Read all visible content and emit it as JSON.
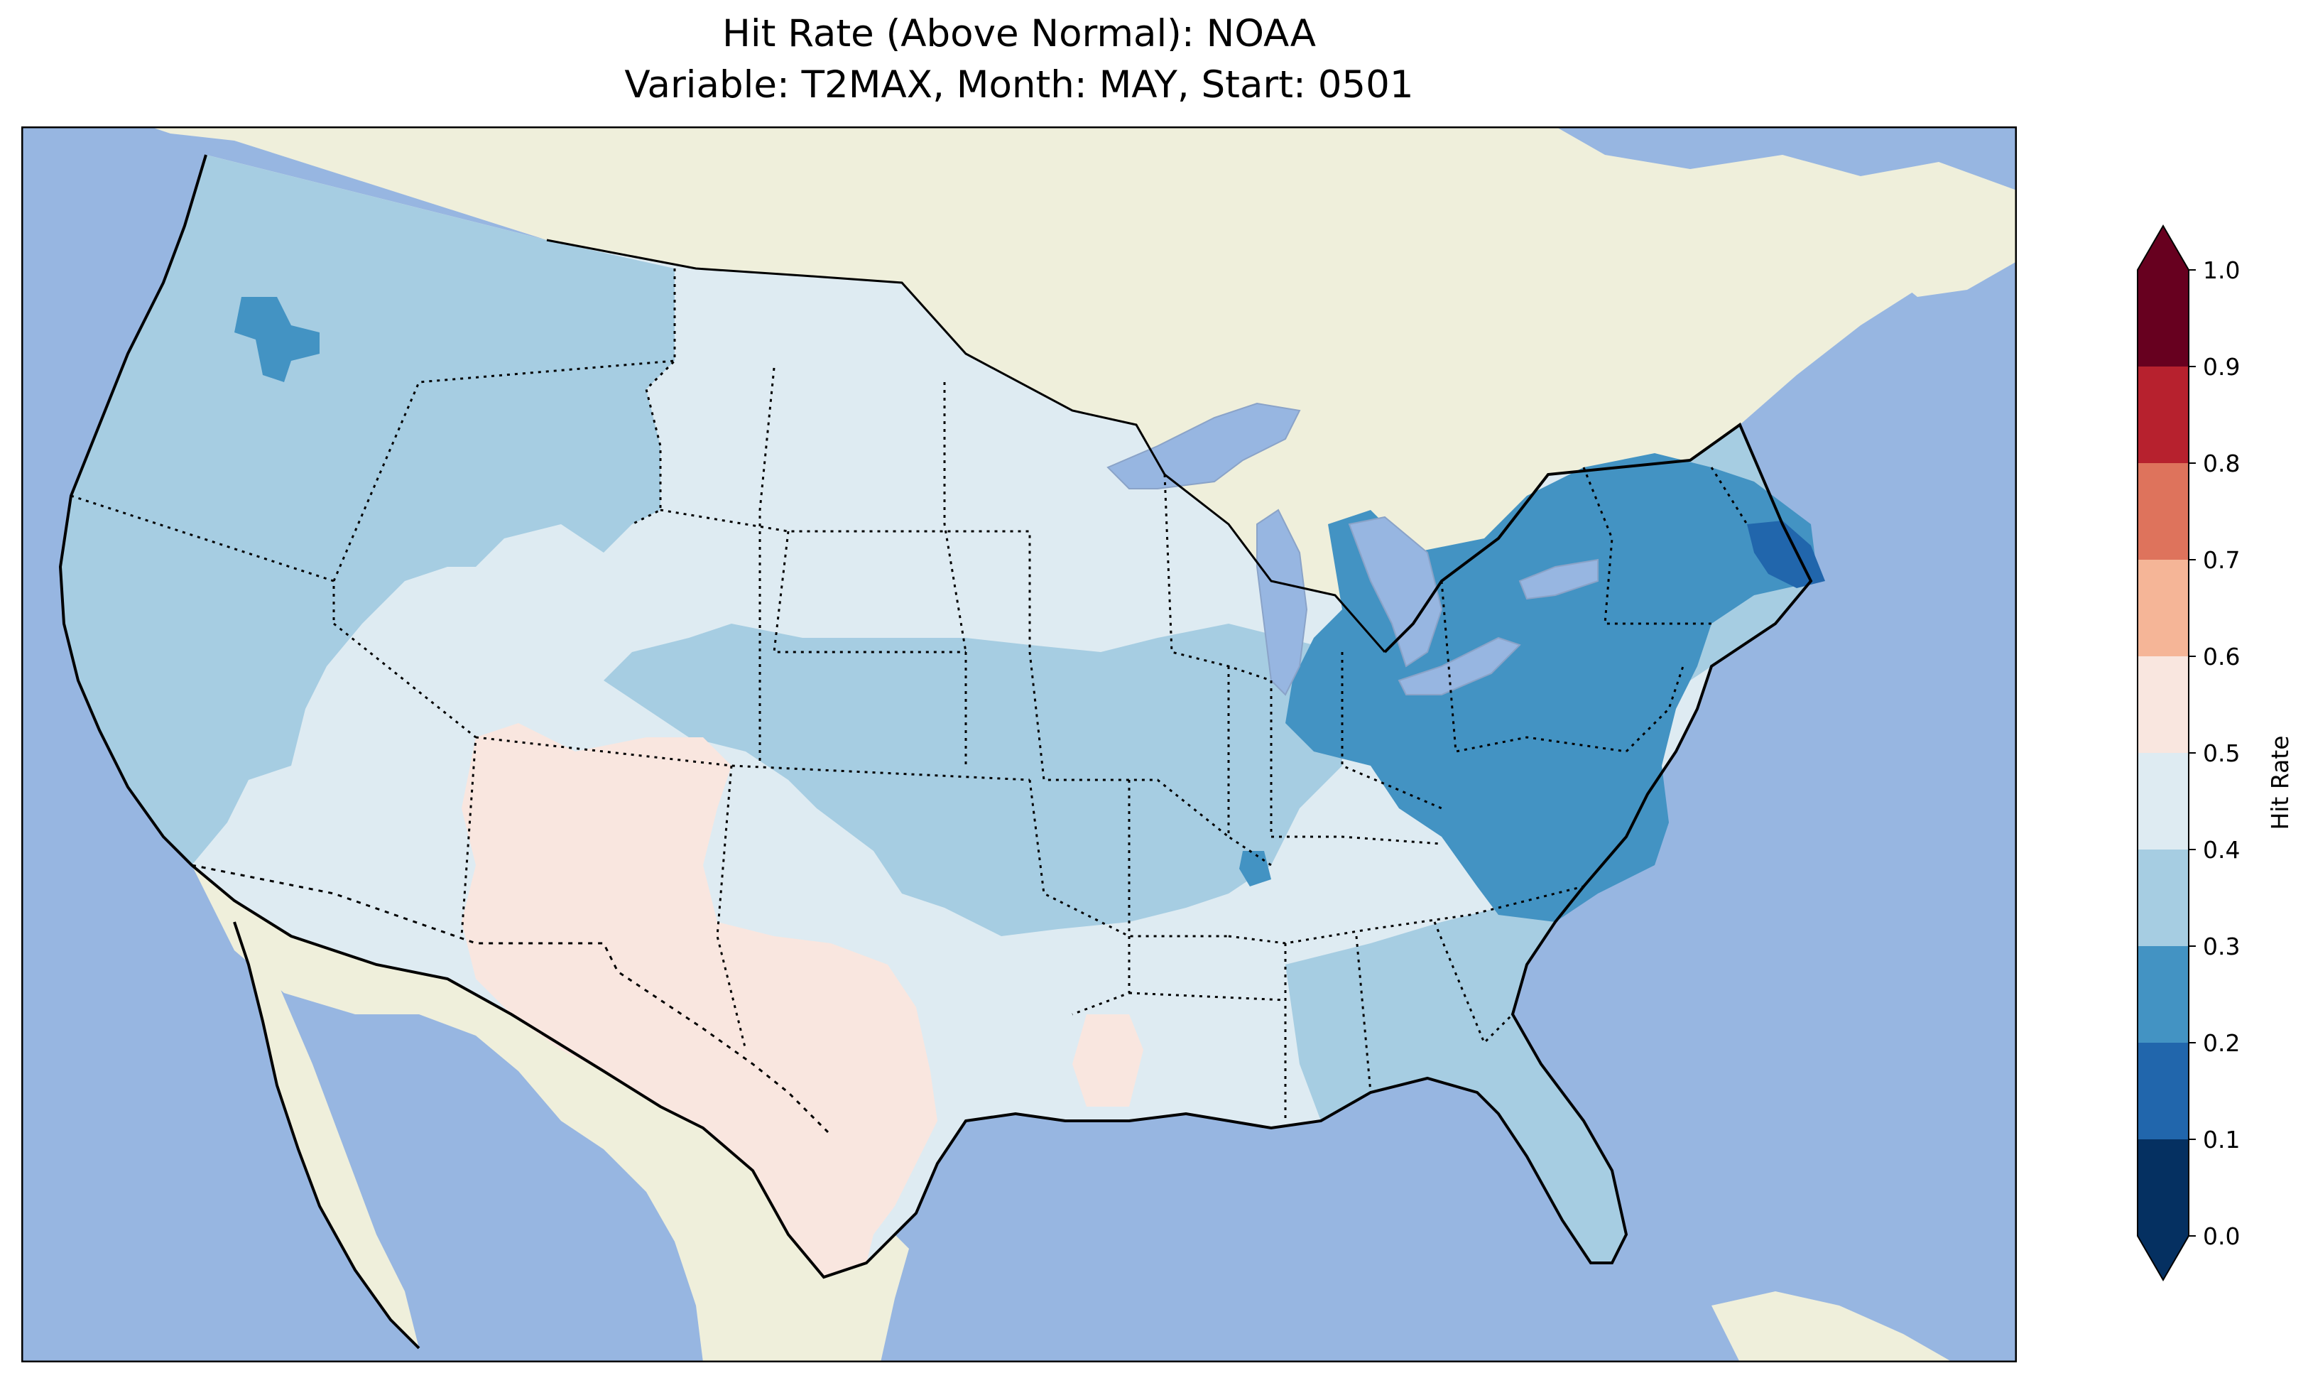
{
  "title": {
    "line1": "Hit Rate (Above Normal): NOAA",
    "line2": "Variable: T2MAX, Month: MAY, Start: 0501"
  },
  "colors": {
    "ocean": "#97b6e1",
    "land": "#efefdb",
    "lake": "#97b6e1"
  },
  "colorbar": {
    "label": "Hit Rate",
    "ticks": [
      "0.0",
      "0.1",
      "0.2",
      "0.3",
      "0.4",
      "0.5",
      "0.6",
      "0.7",
      "0.8",
      "0.9",
      "1.0"
    ],
    "bins": [
      {
        "from": 0.0,
        "to": 0.1,
        "color": "#053061"
      },
      {
        "from": 0.1,
        "to": 0.2,
        "color": "#2166ac"
      },
      {
        "from": 0.2,
        "to": 0.3,
        "color": "#4393c3"
      },
      {
        "from": 0.3,
        "to": 0.4,
        "color": "#a6cde2"
      },
      {
        "from": 0.4,
        "to": 0.5,
        "color": "#deebf2"
      },
      {
        "from": 0.5,
        "to": 0.6,
        "color": "#f9e6df"
      },
      {
        "from": 0.6,
        "to": 0.7,
        "color": "#f5b597"
      },
      {
        "from": 0.7,
        "to": 0.8,
        "color": "#de735c"
      },
      {
        "from": 0.8,
        "to": 0.9,
        "color": "#b7212e"
      },
      {
        "from": 0.9,
        "to": 1.0,
        "color": "#67001f"
      }
    ],
    "extend": "both"
  },
  "map": {
    "projection": "Lambert conformal, contiguous United States",
    "regions": [
      {
        "name": "Pacific Northwest interior",
        "bin": "0.3-0.4"
      },
      {
        "name": "Northern Oregon pocket",
        "bin": "0.2-0.3"
      },
      {
        "name": "Northern Rockies and Plains",
        "bin": "0.3-0.4"
      },
      {
        "name": "Dakotas and Upper Midwest",
        "bin": "0.4-0.5"
      },
      {
        "name": "Great Basin and Southwest",
        "bin": "0.4-0.5"
      },
      {
        "name": "Four Corners and Texas",
        "bin": "0.5-0.6"
      },
      {
        "name": "Central Plains and Midwest",
        "bin": "0.3-0.4"
      },
      {
        "name": "Ohio Valley and Mid-Atlantic",
        "bin": "0.2-0.3"
      },
      {
        "name": "Southern New England coast",
        "bin": "0.1-0.2"
      },
      {
        "name": "Southeast and Florida",
        "bin": "0.3-0.4"
      },
      {
        "name": "Lower Mississippi Valley",
        "bin": "0.4-0.5"
      }
    ]
  }
}
